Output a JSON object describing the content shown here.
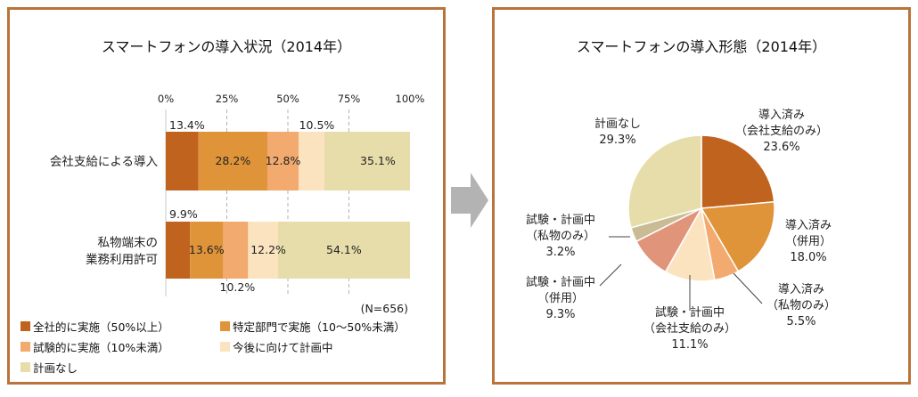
{
  "colors": {
    "full": "#c0631f",
    "dept": "#e0943a",
    "trial": "#f2aa6e",
    "planning": "#fbe3bf",
    "none": "#e6ddaa",
    "pie_trial_private": "#c9bc94",
    "pie_trial_both": "#e0957b",
    "panel_border": "#b9743a"
  },
  "left": {
    "title": "スマートフォンの導入状況（2014年）",
    "note": "(N=656)",
    "legend": [
      {
        "label": "全社的に実施（50%以上）",
        "color_key": "full"
      },
      {
        "label": "特定部門で実施（10～50%未満）",
        "color_key": "dept"
      },
      {
        "label": "試験的に実施（10%未満）",
        "color_key": "trial"
      },
      {
        "label": "今後に向けて計画中",
        "color_key": "planning"
      },
      {
        "label": "計画なし",
        "color_key": "none"
      }
    ]
  },
  "right": {
    "title": "スマートフォンの導入形態（2014年）"
  },
  "chart_data": [
    {
      "type": "bar",
      "orientation": "horizontal",
      "stacked": "percent",
      "title": "スマートフォンの導入状況（2014年）",
      "categories": [
        "会社支給による導入",
        "私物端末の\n業務利用許可"
      ],
      "x_ticks": [
        "0%",
        "25%",
        "50%",
        "75%",
        "100%"
      ],
      "xlim": [
        0,
        100
      ],
      "grid": "dashed vertical",
      "legend_position": "bottom",
      "series": [
        {
          "name": "全社的に実施（50%以上）",
          "color_key": "full",
          "values": [
            13.4,
            9.9
          ],
          "labels": [
            "13.4%",
            "9.9%"
          ]
        },
        {
          "name": "特定部門で実施（10～50%未満）",
          "color_key": "dept",
          "values": [
            28.2,
            13.6
          ],
          "labels": [
            "28.2%",
            "13.6%"
          ]
        },
        {
          "name": "試験的に実施（10%未満）",
          "color_key": "trial",
          "values": [
            12.8,
            10.2
          ],
          "labels": [
            "12.8%",
            "10.2%"
          ]
        },
        {
          "name": "今後に向けて計画中",
          "color_key": "planning",
          "values": [
            10.5,
            12.2
          ],
          "labels": [
            "10.5%",
            "12.2%"
          ]
        },
        {
          "name": "計画なし",
          "color_key": "none",
          "values": [
            35.1,
            54.1
          ],
          "labels": [
            "35.1%",
            "54.1%"
          ]
        }
      ],
      "note": "(N=656)"
    },
    {
      "type": "pie",
      "title": "スマートフォンの導入形態（2014年）",
      "slices": [
        {
          "label": "導入済み\n（会社支給のみ）",
          "value": 23.6,
          "value_label": "23.6%",
          "color_key": "full"
        },
        {
          "label": "導入済み\n（併用）",
          "value": 18.0,
          "value_label": "18.0%",
          "color_key": "dept"
        },
        {
          "label": "導入済み\n（私物のみ）",
          "value": 5.5,
          "value_label": "5.5%",
          "color_key": "trial"
        },
        {
          "label": "試験・計画中\n（会社支給のみ）",
          "value": 11.1,
          "value_label": "11.1%",
          "color_key": "planning"
        },
        {
          "label": "試験・計画中\n（併用）",
          "value": 9.3,
          "value_label": "9.3%",
          "color_key": "pie_trial_both"
        },
        {
          "label": "試験・計画中\n（私物のみ）",
          "value": 3.2,
          "value_label": "3.2%",
          "color_key": "pie_trial_private"
        },
        {
          "label": "計画なし",
          "value": 29.3,
          "value_label": "29.3%",
          "color_key": "none"
        }
      ]
    }
  ]
}
